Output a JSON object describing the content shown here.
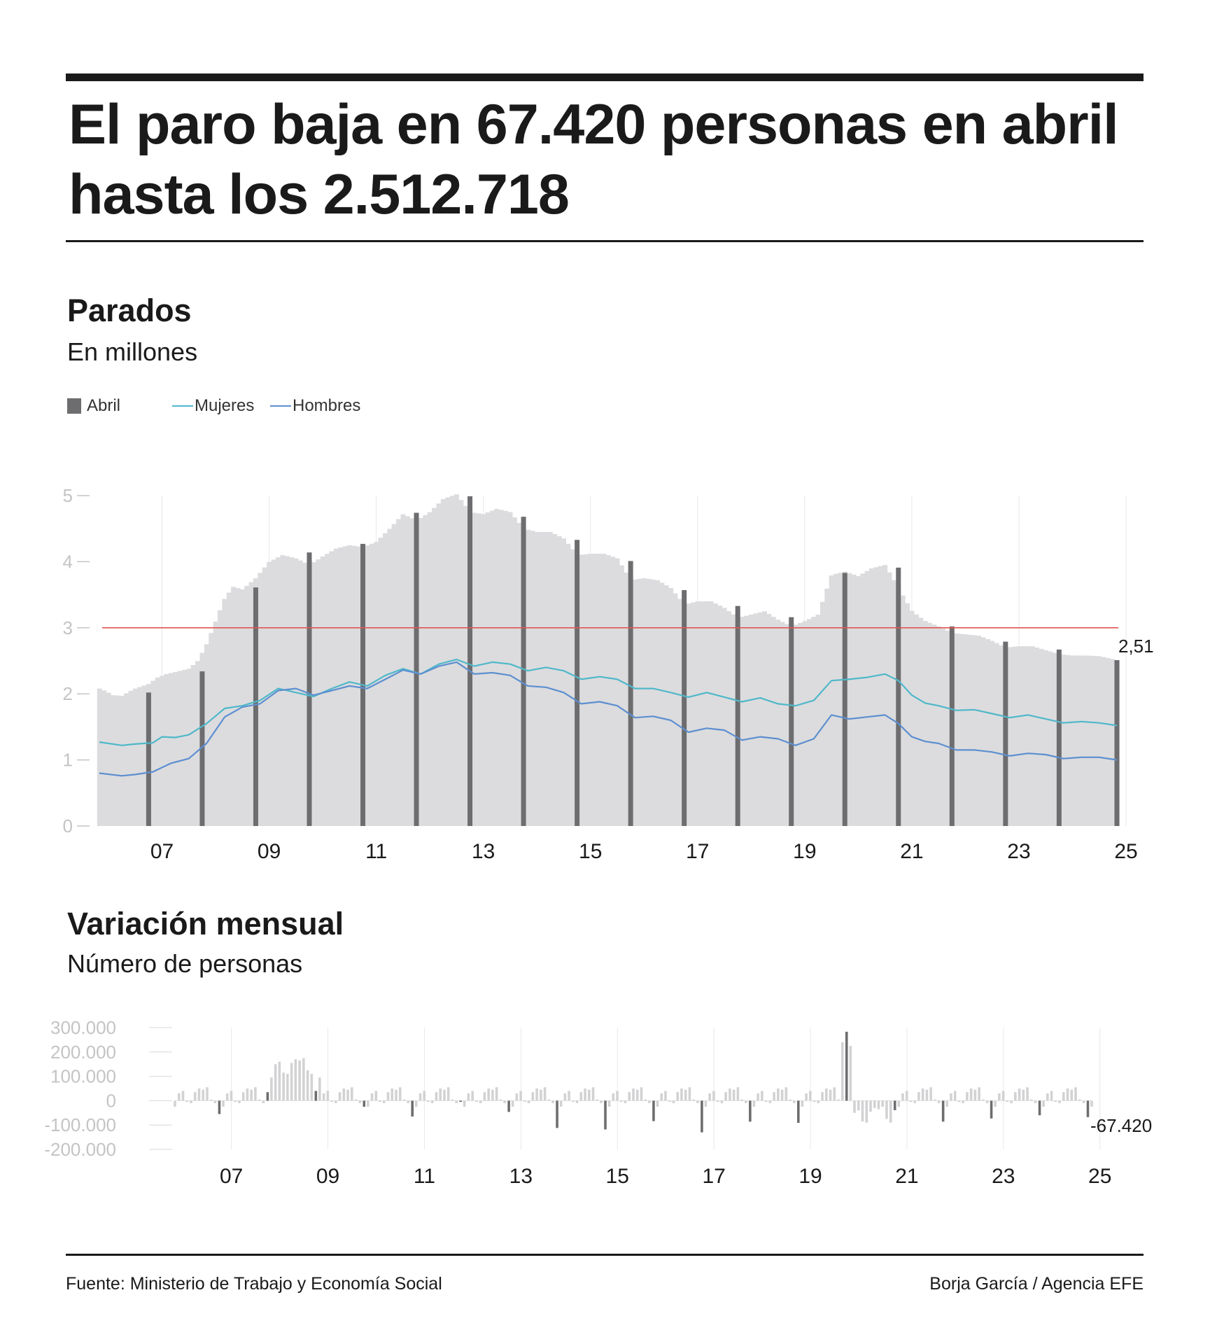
{
  "headline": "El paro baja en 67.420 personas en abril hasta los 2.512.718",
  "chart_data": [
    {
      "type": "bar",
      "title": "Parados",
      "subtitle": "En millones",
      "legend": [
        {
          "label": "Abril",
          "kind": "bar",
          "color": "#6d6d6f"
        },
        {
          "label": "Mujeres",
          "kind": "line",
          "color": "#4fb8c9"
        },
        {
          "label": "Hombres",
          "kind": "line",
          "color": "#5d8fd0"
        }
      ],
      "legend_position": "top-left",
      "x_range": [
        2006.33,
        2025.33
      ],
      "ylim": [
        0,
        5
      ],
      "y_ticks": [
        0,
        1,
        2,
        3,
        4,
        5
      ],
      "x_tick_labels": [
        {
          "year": 2007,
          "label": "07"
        },
        {
          "year": 2009,
          "label": "09"
        },
        {
          "year": 2011,
          "label": "11"
        },
        {
          "year": 2013,
          "label": "13"
        },
        {
          "year": 2015,
          "label": "15"
        },
        {
          "year": 2017,
          "label": "17"
        },
        {
          "year": 2019,
          "label": "19"
        },
        {
          "year": 2021,
          "label": "21"
        },
        {
          "year": 2023,
          "label": "23"
        },
        {
          "year": 2025,
          "label": "25"
        }
      ],
      "reference_line": {
        "value": 3,
        "color": "#e05555"
      },
      "end_label": "2,51",
      "colors": {
        "monthly_bar": "#dcdcde",
        "april_bar": "#6d6d6f",
        "grid": "#e8e8ea"
      },
      "total_anchors": [
        [
          2006.33,
          2.08
        ],
        [
          2006.42,
          2.05
        ],
        [
          2006.58,
          1.98
        ],
        [
          2006.75,
          1.97
        ],
        [
          2006.92,
          2.05
        ],
        [
          2007.0,
          2.08
        ],
        [
          2007.25,
          2.15
        ],
        [
          2007.42,
          2.25
        ],
        [
          2007.58,
          2.3
        ],
        [
          2007.75,
          2.33
        ],
        [
          2008.0,
          2.38
        ],
        [
          2008.17,
          2.5
        ],
        [
          2008.33,
          2.75
        ],
        [
          2008.5,
          3.1
        ],
        [
          2008.67,
          3.45
        ],
        [
          2008.83,
          3.62
        ],
        [
          2009.0,
          3.58
        ],
        [
          2009.25,
          3.75
        ],
        [
          2009.5,
          4.0
        ],
        [
          2009.75,
          4.1
        ],
        [
          2010.0,
          4.05
        ],
        [
          2010.25,
          3.95
        ],
        [
          2010.5,
          4.08
        ],
        [
          2010.75,
          4.2
        ],
        [
          2011.0,
          4.25
        ],
        [
          2011.25,
          4.22
        ],
        [
          2011.5,
          4.3
        ],
        [
          2011.75,
          4.5
        ],
        [
          2012.0,
          4.72
        ],
        [
          2012.25,
          4.62
        ],
        [
          2012.5,
          4.75
        ],
        [
          2012.75,
          4.95
        ],
        [
          2013.0,
          5.02
        ],
        [
          2013.25,
          4.75
        ],
        [
          2013.5,
          4.72
        ],
        [
          2013.75,
          4.8
        ],
        [
          2014.0,
          4.75
        ],
        [
          2014.25,
          4.5
        ],
        [
          2014.5,
          4.45
        ],
        [
          2014.75,
          4.45
        ],
        [
          2015.0,
          4.35
        ],
        [
          2015.25,
          4.1
        ],
        [
          2015.5,
          4.12
        ],
        [
          2015.75,
          4.12
        ],
        [
          2016.0,
          4.05
        ],
        [
          2016.25,
          3.72
        ],
        [
          2016.5,
          3.75
        ],
        [
          2016.75,
          3.72
        ],
        [
          2017.0,
          3.6
        ],
        [
          2017.25,
          3.35
        ],
        [
          2017.5,
          3.4
        ],
        [
          2017.75,
          3.4
        ],
        [
          2018.0,
          3.3
        ],
        [
          2018.25,
          3.15
        ],
        [
          2018.5,
          3.2
        ],
        [
          2018.75,
          3.25
        ],
        [
          2019.0,
          3.12
        ],
        [
          2019.25,
          3.02
        ],
        [
          2019.5,
          3.1
        ],
        [
          2019.75,
          3.2
        ],
        [
          2020.0,
          3.8
        ],
        [
          2020.25,
          3.85
        ],
        [
          2020.5,
          3.78
        ],
        [
          2020.75,
          3.9
        ],
        [
          2021.0,
          3.95
        ],
        [
          2021.25,
          3.6
        ],
        [
          2021.5,
          3.25
        ],
        [
          2021.75,
          3.1
        ],
        [
          2022.0,
          3.02
        ],
        [
          2022.25,
          2.92
        ],
        [
          2022.5,
          2.9
        ],
        [
          2022.75,
          2.88
        ],
        [
          2023.0,
          2.8
        ],
        [
          2023.25,
          2.7
        ],
        [
          2023.5,
          2.72
        ],
        [
          2023.75,
          2.72
        ],
        [
          2024.0,
          2.66
        ],
        [
          2024.25,
          2.6
        ],
        [
          2024.5,
          2.58
        ],
        [
          2024.75,
          2.58
        ],
        [
          2025.0,
          2.57
        ],
        [
          2025.33,
          2.51
        ]
      ],
      "april_values": [
        {
          "year": 2007,
          "value": 2.02
        },
        {
          "year": 2008,
          "value": 2.34
        },
        {
          "year": 2009,
          "value": 3.61
        },
        {
          "year": 2010,
          "value": 4.14
        },
        {
          "year": 2011,
          "value": 4.27
        },
        {
          "year": 2012,
          "value": 4.74
        },
        {
          "year": 2013,
          "value": 4.99
        },
        {
          "year": 2014,
          "value": 4.68
        },
        {
          "year": 2015,
          "value": 4.33
        },
        {
          "year": 2016,
          "value": 4.01
        },
        {
          "year": 2017,
          "value": 3.57
        },
        {
          "year": 2018,
          "value": 3.33
        },
        {
          "year": 2019,
          "value": 3.16
        },
        {
          "year": 2020,
          "value": 3.83
        },
        {
          "year": 2021,
          "value": 3.91
        },
        {
          "year": 2022,
          "value": 3.02
        },
        {
          "year": 2023,
          "value": 2.79
        },
        {
          "year": 2024,
          "value": 2.67
        },
        {
          "year": 2025,
          "value": 2.51
        }
      ],
      "series": [
        {
          "name": "Mujeres",
          "color": "#4fb8c9",
          "points": [
            [
              2006.33,
              1.27
            ],
            [
              2006.75,
              1.22
            ],
            [
              2007.0,
              1.24
            ],
            [
              2007.33,
              1.26
            ],
            [
              2007.5,
              1.35
            ],
            [
              2007.75,
              1.34
            ],
            [
              2008.0,
              1.38
            ],
            [
              2008.33,
              1.55
            ],
            [
              2008.67,
              1.78
            ],
            [
              2009.0,
              1.82
            ],
            [
              2009.33,
              1.9
            ],
            [
              2009.67,
              2.08
            ],
            [
              2010.0,
              2.02
            ],
            [
              2010.33,
              1.96
            ],
            [
              2010.67,
              2.08
            ],
            [
              2011.0,
              2.18
            ],
            [
              2011.33,
              2.12
            ],
            [
              2011.67,
              2.28
            ],
            [
              2012.0,
              2.38
            ],
            [
              2012.33,
              2.3
            ],
            [
              2012.67,
              2.45
            ],
            [
              2013.0,
              2.52
            ],
            [
              2013.33,
              2.42
            ],
            [
              2013.67,
              2.48
            ],
            [
              2014.0,
              2.45
            ],
            [
              2014.33,
              2.35
            ],
            [
              2014.67,
              2.4
            ],
            [
              2015.0,
              2.35
            ],
            [
              2015.33,
              2.22
            ],
            [
              2015.67,
              2.26
            ],
            [
              2016.0,
              2.22
            ],
            [
              2016.33,
              2.08
            ],
            [
              2016.67,
              2.08
            ],
            [
              2017.0,
              2.02
            ],
            [
              2017.33,
              1.95
            ],
            [
              2017.67,
              2.02
            ],
            [
              2018.0,
              1.95
            ],
            [
              2018.33,
              1.88
            ],
            [
              2018.67,
              1.94
            ],
            [
              2019.0,
              1.85
            ],
            [
              2019.33,
              1.82
            ],
            [
              2019.67,
              1.9
            ],
            [
              2020.0,
              2.2
            ],
            [
              2020.33,
              2.22
            ],
            [
              2020.67,
              2.25
            ],
            [
              2021.0,
              2.3
            ],
            [
              2021.25,
              2.2
            ],
            [
              2021.5,
              1.98
            ],
            [
              2021.75,
              1.86
            ],
            [
              2022.0,
              1.82
            ],
            [
              2022.33,
              1.75
            ],
            [
              2022.67,
              1.76
            ],
            [
              2023.0,
              1.7
            ],
            [
              2023.33,
              1.64
            ],
            [
              2023.67,
              1.68
            ],
            [
              2024.0,
              1.62
            ],
            [
              2024.33,
              1.56
            ],
            [
              2024.67,
              1.58
            ],
            [
              2025.0,
              1.56
            ],
            [
              2025.33,
              1.52
            ]
          ]
        },
        {
          "name": "Hombres",
          "color": "#5d8fd0",
          "points": [
            [
              2006.33,
              0.8
            ],
            [
              2006.75,
              0.76
            ],
            [
              2007.0,
              0.78
            ],
            [
              2007.33,
              0.82
            ],
            [
              2007.67,
              0.95
            ],
            [
              2008.0,
              1.02
            ],
            [
              2008.33,
              1.25
            ],
            [
              2008.67,
              1.65
            ],
            [
              2009.0,
              1.8
            ],
            [
              2009.33,
              1.85
            ],
            [
              2009.67,
              2.05
            ],
            [
              2010.0,
              2.08
            ],
            [
              2010.33,
              1.98
            ],
            [
              2010.67,
              2.05
            ],
            [
              2011.0,
              2.12
            ],
            [
              2011.33,
              2.08
            ],
            [
              2011.67,
              2.22
            ],
            [
              2012.0,
              2.36
            ],
            [
              2012.33,
              2.3
            ],
            [
              2012.67,
              2.42
            ],
            [
              2013.0,
              2.48
            ],
            [
              2013.33,
              2.3
            ],
            [
              2013.67,
              2.32
            ],
            [
              2014.0,
              2.28
            ],
            [
              2014.33,
              2.12
            ],
            [
              2014.67,
              2.1
            ],
            [
              2015.0,
              2.02
            ],
            [
              2015.33,
              1.85
            ],
            [
              2015.67,
              1.88
            ],
            [
              2016.0,
              1.82
            ],
            [
              2016.33,
              1.64
            ],
            [
              2016.67,
              1.66
            ],
            [
              2017.0,
              1.6
            ],
            [
              2017.33,
              1.42
            ],
            [
              2017.67,
              1.48
            ],
            [
              2018.0,
              1.45
            ],
            [
              2018.33,
              1.3
            ],
            [
              2018.67,
              1.35
            ],
            [
              2019.0,
              1.32
            ],
            [
              2019.33,
              1.22
            ],
            [
              2019.67,
              1.32
            ],
            [
              2020.0,
              1.68
            ],
            [
              2020.33,
              1.62
            ],
            [
              2020.67,
              1.65
            ],
            [
              2021.0,
              1.68
            ],
            [
              2021.25,
              1.55
            ],
            [
              2021.5,
              1.35
            ],
            [
              2021.75,
              1.28
            ],
            [
              2022.0,
              1.25
            ],
            [
              2022.33,
              1.15
            ],
            [
              2022.67,
              1.15
            ],
            [
              2023.0,
              1.12
            ],
            [
              2023.33,
              1.06
            ],
            [
              2023.67,
              1.1
            ],
            [
              2024.0,
              1.08
            ],
            [
              2024.33,
              1.02
            ],
            [
              2024.67,
              1.04
            ],
            [
              2025.0,
              1.04
            ],
            [
              2025.33,
              1.0
            ]
          ]
        }
      ]
    },
    {
      "type": "bar",
      "title": "Variación mensual",
      "subtitle": "Número de personas",
      "ylim": [
        -200000,
        300000
      ],
      "y_tick_values": [
        300000,
        200000,
        100000,
        0,
        -100000,
        -200000
      ],
      "y_tick_labels": [
        "300.000",
        "200.000",
        "100.000",
        "0",
        "-100.000",
        "-200.000"
      ],
      "x_tick_labels": [
        {
          "year": 2007,
          "label": "07"
        },
        {
          "year": 2009,
          "label": "09"
        },
        {
          "year": 2011,
          "label": "11"
        },
        {
          "year": 2013,
          "label": "13"
        },
        {
          "year": 2015,
          "label": "15"
        },
        {
          "year": 2017,
          "label": "17"
        },
        {
          "year": 2019,
          "label": "19"
        },
        {
          "year": 2021,
          "label": "21"
        },
        {
          "year": 2023,
          "label": "23"
        },
        {
          "year": 2025,
          "label": "25"
        }
      ],
      "end_label": "-67.420",
      "x_range": [
        2006.33,
        2025.33
      ],
      "colors": {
        "monthly_bar": "#d2d2d4",
        "april_bar": "#6d6d6f",
        "grid": "#e8e8ea"
      },
      "annual_pattern": [
        55000,
        5000,
        -10000,
        -30000,
        -25000,
        30000,
        40000,
        -5000,
        -10000,
        35000,
        50000,
        45000
      ],
      "crisis_boost": [
        {
          "start": 2008.25,
          "end": 2009.33,
          "add": 120000
        },
        {
          "start": 2020.1,
          "end": 2020.35,
          "add": 250000
        }
      ],
      "april_values": [
        {
          "year": 2007,
          "value": -55000
        },
        {
          "year": 2008,
          "value": 35000
        },
        {
          "year": 2009,
          "value": 40000
        },
        {
          "year": 2010,
          "value": -25000
        },
        {
          "year": 2011,
          "value": -65000
        },
        {
          "year": 2012,
          "value": -5000
        },
        {
          "year": 2013,
          "value": -46000
        },
        {
          "year": 2014,
          "value": -112000
        },
        {
          "year": 2015,
          "value": -118000
        },
        {
          "year": 2016,
          "value": -84000
        },
        {
          "year": 2017,
          "value": -130000
        },
        {
          "year": 2018,
          "value": -86000
        },
        {
          "year": 2019,
          "value": -91000
        },
        {
          "year": 2020,
          "value": 283000
        },
        {
          "year": 2021,
          "value": -39000
        },
        {
          "year": 2022,
          "value": -86000
        },
        {
          "year": 2023,
          "value": -73000
        },
        {
          "year": 2024,
          "value": -60000
        },
        {
          "year": 2025,
          "value": -67420
        }
      ]
    }
  ],
  "footer": {
    "source": "Fuente: Ministerio de Trabajo y Economía Social",
    "credit": "Borja García / Agencia EFE"
  }
}
